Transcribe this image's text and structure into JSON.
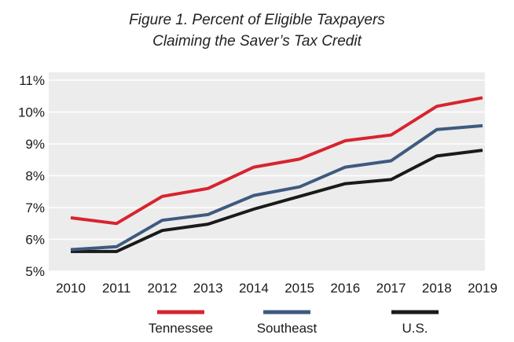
{
  "title_line1": "Figure 1. Percent of Eligible Taxpayers",
  "title_line2": "Claiming the Saver’s Tax Credit",
  "chart_data": {
    "type": "line",
    "title": "Figure 1. Percent of Eligible Taxpayers Claiming the Saver’s Tax Credit",
    "x": [
      "2010",
      "2011",
      "2012",
      "2013",
      "2014",
      "2015",
      "2016",
      "2017",
      "2018",
      "2019"
    ],
    "ylim": [
      5,
      11
    ],
    "yticks": [
      5,
      6,
      7,
      8,
      9,
      10,
      11
    ],
    "ytick_labels": [
      "5%",
      "6%",
      "7%",
      "8%",
      "9%",
      "10%",
      "11%"
    ],
    "xlabel": "",
    "ylabel": "",
    "grid": true,
    "legend_position": "bottom",
    "series": [
      {
        "name": "Tennessee",
        "color": "#d7242f",
        "values": [
          6.68,
          6.5,
          7.35,
          7.6,
          8.27,
          8.52,
          9.1,
          9.28,
          10.18,
          10.45
        ]
      },
      {
        "name": "Southeast",
        "color": "#3e5a7e",
        "values": [
          5.68,
          5.77,
          6.6,
          6.78,
          7.38,
          7.65,
          8.27,
          8.47,
          9.45,
          9.57
        ]
      },
      {
        "name": "U.S.",
        "color": "#1a1a1a",
        "values": [
          5.62,
          5.62,
          6.28,
          6.48,
          6.95,
          7.35,
          7.75,
          7.88,
          8.62,
          8.8
        ]
      }
    ]
  }
}
